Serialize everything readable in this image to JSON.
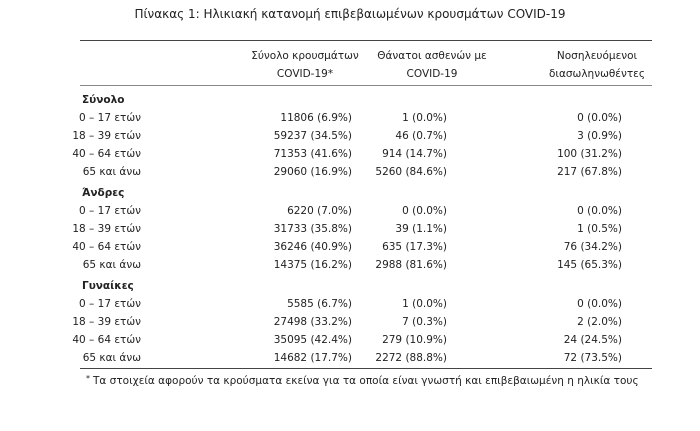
{
  "title": "Πίνακας 1: Ηλικιακή κατανομή επιβεβαιωμένων κρουσμάτων COVID-19",
  "table": {
    "headers": [
      [
        "Σύνολο κρουσμάτων",
        "COVID-19*"
      ],
      [
        "Θάνατοι ασθενών με",
        "COVID-19"
      ],
      [
        "Νοσηλευόμενοι",
        "διασωληνωθέντες"
      ]
    ],
    "sections": [
      {
        "name": "Σύνολο",
        "rows": [
          [
            "0 – 17 ετών",
            "11806 (6.9%)",
            "1 (0.0%)",
            "0 (0.0%)"
          ],
          [
            "18 – 39 ετών",
            "59237 (34.5%)",
            "46 (0.7%)",
            "3 (0.9%)"
          ],
          [
            "40 – 64 ετών",
            "71353 (41.6%)",
            "914 (14.7%)",
            "100 (31.2%)"
          ],
          [
            "65 και άνω",
            "29060 (16.9%)",
            "5260 (84.6%)",
            "217 (67.8%)"
          ]
        ]
      },
      {
        "name": "Άνδρες",
        "rows": [
          [
            "0 – 17 ετών",
            "6220 (7.0%)",
            "0 (0.0%)",
            "0 (0.0%)"
          ],
          [
            "18 – 39 ετών",
            "31733 (35.8%)",
            "39 (1.1%)",
            "1 (0.5%)"
          ],
          [
            "40 – 64 ετών",
            "36246 (40.9%)",
            "635 (17.3%)",
            "76 (34.2%)"
          ],
          [
            "65 και άνω",
            "14375 (16.2%)",
            "2988 (81.6%)",
            "145 (65.3%)"
          ]
        ]
      },
      {
        "name": "Γυναίκες",
        "rows": [
          [
            "0 – 17 ετών",
            "5585 (6.7%)",
            "1 (0.0%)",
            "0 (0.0%)"
          ],
          [
            "18 – 39 ετών",
            "27498 (33.2%)",
            "7 (0.3%)",
            "2 (2.0%)"
          ],
          [
            "40 – 64 ετών",
            "35095 (42.4%)",
            "279 (10.9%)",
            "24 (24.5%)"
          ],
          [
            "65 και άνω",
            "14682 (17.7%)",
            "2272 (88.8%)",
            "72 (73.5%)"
          ]
        ]
      }
    ]
  },
  "footnote": {
    "marker": "*",
    "text": "Τα στοιχεία αφορούν τα κρούσματα εκείνα για τα οποία είναι γνωστή και επιβεβαιωμένη η ηλικία τους"
  }
}
